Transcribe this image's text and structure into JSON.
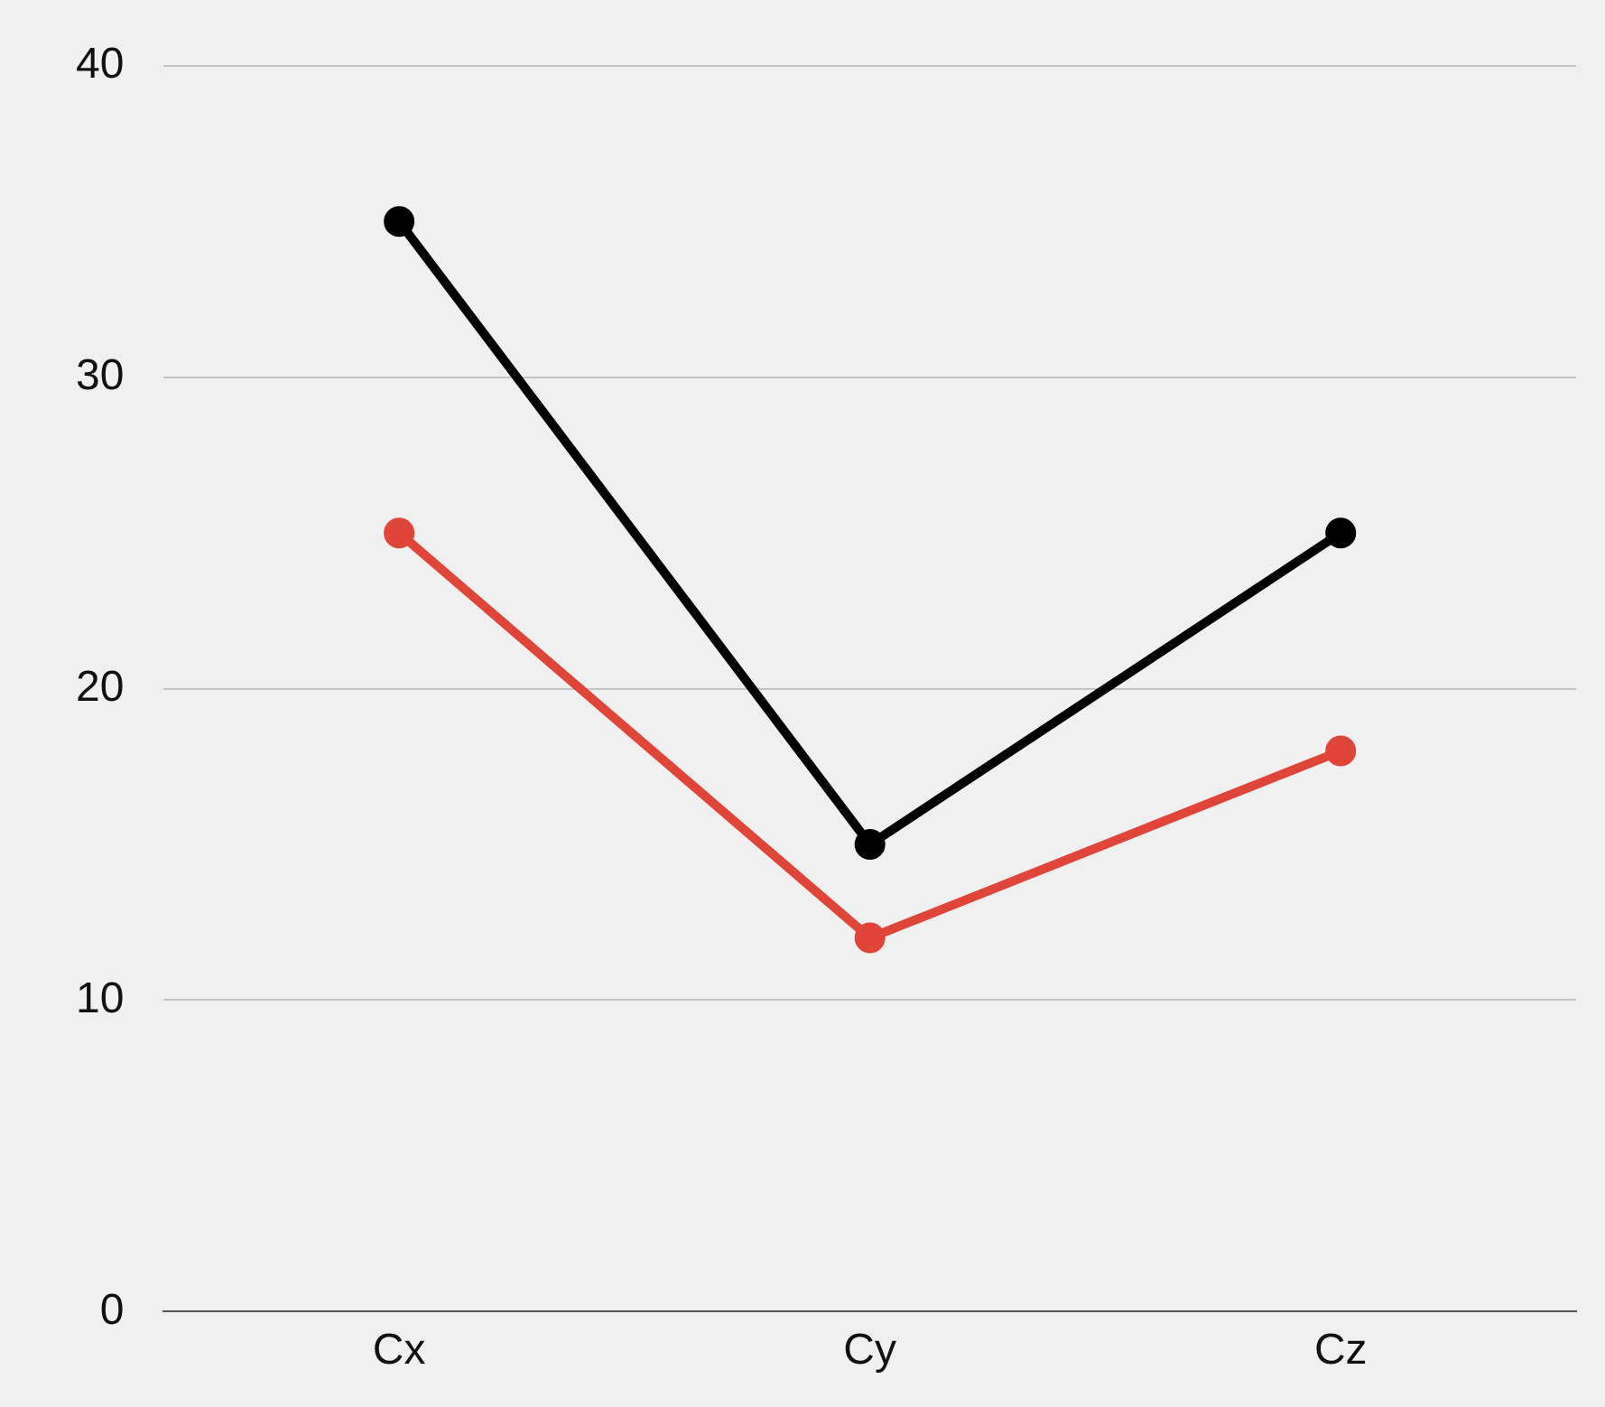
{
  "chart_data": {
    "type": "line",
    "categories": [
      "Cx",
      "Cy",
      "Cz"
    ],
    "series": [
      {
        "color": "#000000",
        "values": [
          35,
          15,
          25
        ]
      },
      {
        "color": "#e0453a",
        "values": [
          25,
          12,
          18
        ]
      }
    ],
    "ylim": [
      0,
      40
    ],
    "yticks": [
      0,
      10,
      20,
      30,
      40
    ],
    "grid": "y",
    "legend": false,
    "marker": "circle",
    "line_style": "solid"
  }
}
